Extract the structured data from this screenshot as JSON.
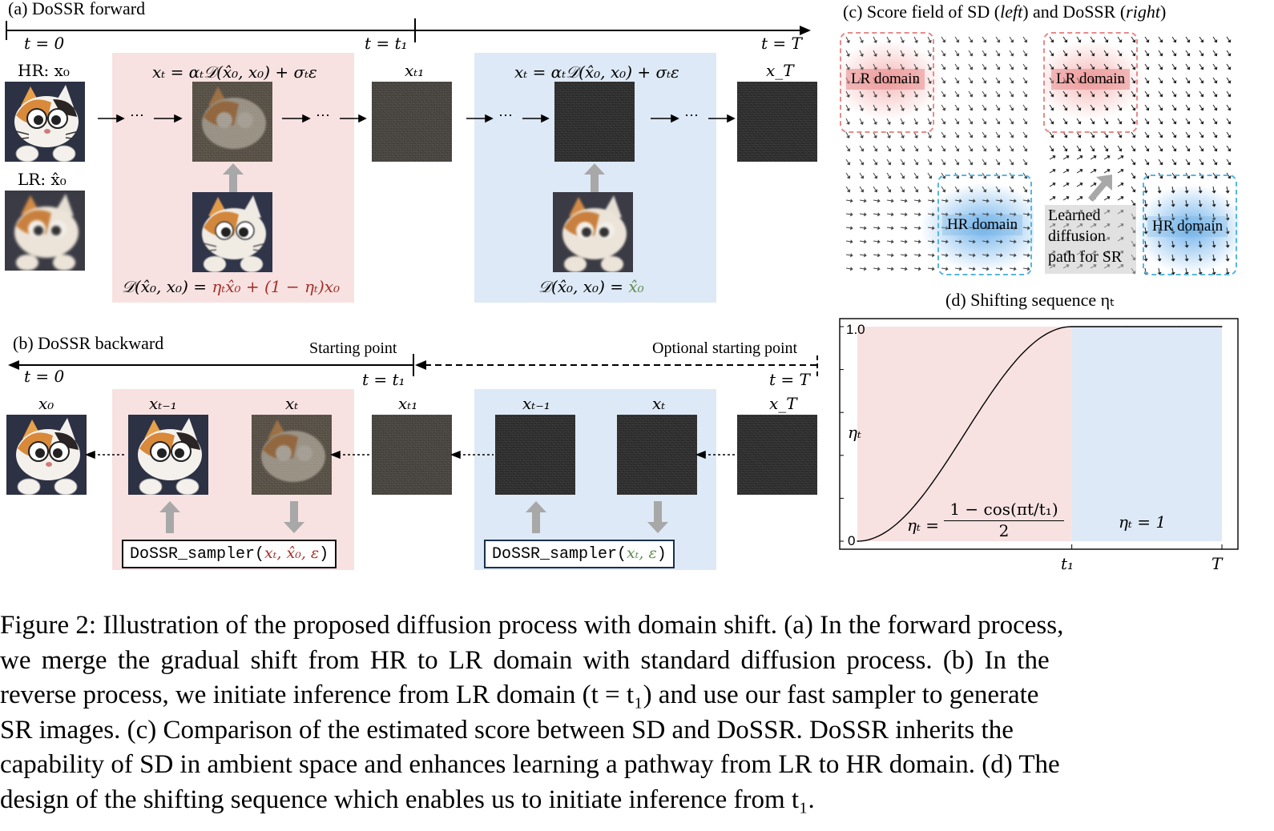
{
  "panel_a": {
    "title": "(a) DoSSR forward",
    "t0": "t = 0",
    "t1": "t = t₁",
    "tT": "t = T",
    "hr_label": "HR: x₀",
    "lr_label": "LR: x̂₀",
    "formula_left": "xₜ = αₜ𝒟(x̂₀, x₀) + σₜε",
    "formula_right": "xₜ = αₜ𝒟(x̂₀, x₀) + σₜε",
    "xt1": "xₜ₁",
    "xT": "x_T",
    "dots": "⋯",
    "d_left_prefix": "𝒟(x̂₀, x₀) = ",
    "d_left_mid": "ηₜx̂₀ + (1 − ηₜ)x₀",
    "d_right_prefix": "𝒟(x̂₀, x₀) = ",
    "d_right_value": "x̂₀"
  },
  "panel_b": {
    "title": "(b) DoSSR backward",
    "starting_point": "Starting point",
    "optional_starting_point": "Optional starting point",
    "t0": "t = 0",
    "t1": "t = t₁",
    "tT": "t = T",
    "x0": "x₀",
    "xtm1_left": "xₜ₋₁",
    "xt_left": "xₜ",
    "xt1": "xₜ₁",
    "xtm1_right": "xₜ₋₁",
    "xt_right": "xₜ",
    "xT": "x_T",
    "sampler_left_prefix": "DoSSR_sampler(",
    "sampler_left_args": "xₜ, x̂₀, ε",
    "sampler_left_suffix": ")",
    "sampler_right_prefix": "DoSSR_sampler(",
    "sampler_right_args": "xₜ, ε",
    "sampler_right_suffix": ")"
  },
  "panel_c": {
    "title_pre": "(c) Score field of SD (",
    "title_left": "left",
    "title_mid": ") and DoSSR (",
    "title_right": "right",
    "title_post": ")",
    "lr_domain": "LR domain",
    "hr_domain": "HR domain",
    "learned_1": "Learned",
    "learned_2": "diffusion",
    "learned_3": "path for SR"
  },
  "panel_d": {
    "title": "(d) Shifting sequence ηₜ",
    "ylabel": "ηₜ",
    "formula_lhs": "ηₜ =",
    "formula_num": "1 − cos(πt/t₁)",
    "formula_den": "2",
    "formula_right": "ηₜ = 1"
  },
  "chart_data": {
    "type": "line",
    "title": "(d) Shifting sequence ηₜ",
    "xlabel": "",
    "ylabel": "ηₜ",
    "x_tick_labels": [
      "t₁",
      "T"
    ],
    "y_tick_labels": [
      "0",
      "1.0"
    ],
    "ylim": [
      0,
      1
    ],
    "series": [
      {
        "x": [
          0,
          0.1,
          0.2,
          0.3,
          0.4,
          0.5,
          0.6,
          0.7,
          0.8,
          0.9,
          1.0,
          1.25,
          1.5,
          1.7
        ],
        "values": [
          0,
          0.024,
          0.095,
          0.206,
          0.345,
          0.5,
          0.655,
          0.794,
          0.905,
          0.976,
          1.0,
          1.0,
          1.0,
          1.0
        ]
      }
    ],
    "regions": [
      {
        "from": 0,
        "to": 1.0,
        "color": "#f7e2e1"
      },
      {
        "from": 1.0,
        "to": 1.7,
        "color": "#dde9f6"
      }
    ],
    "grid": false
  },
  "caption": {
    "line1": "Figure 2: Illustration of the proposed diffusion process with domain shift. (a) In the forward process,",
    "line2": "we merge the gradual shift from HR to LR domain with standard diffusion process.  (b) In the",
    "line3": "reverse process, we initiate inference from LR domain (t = t₁) and use our fast sampler to generate",
    "line4": "SR images.  (c) Comparison of the estimated score between SD and DoSSR. DoSSR inherits the",
    "line5": "capability of SD in ambient space and enhances learning a pathway from LR to HR domain. (d) The",
    "line6": "design of the shifting sequence which enables us to initiate inference from t₁."
  },
  "colors": {
    "pink_panel": "#f7e2e1",
    "blue_panel": "#dde9f6",
    "red_text": "#a3302a",
    "green_text": "#5f8a4f",
    "lr_box": "#e88a8a",
    "hr_box": "#55b6e6"
  }
}
